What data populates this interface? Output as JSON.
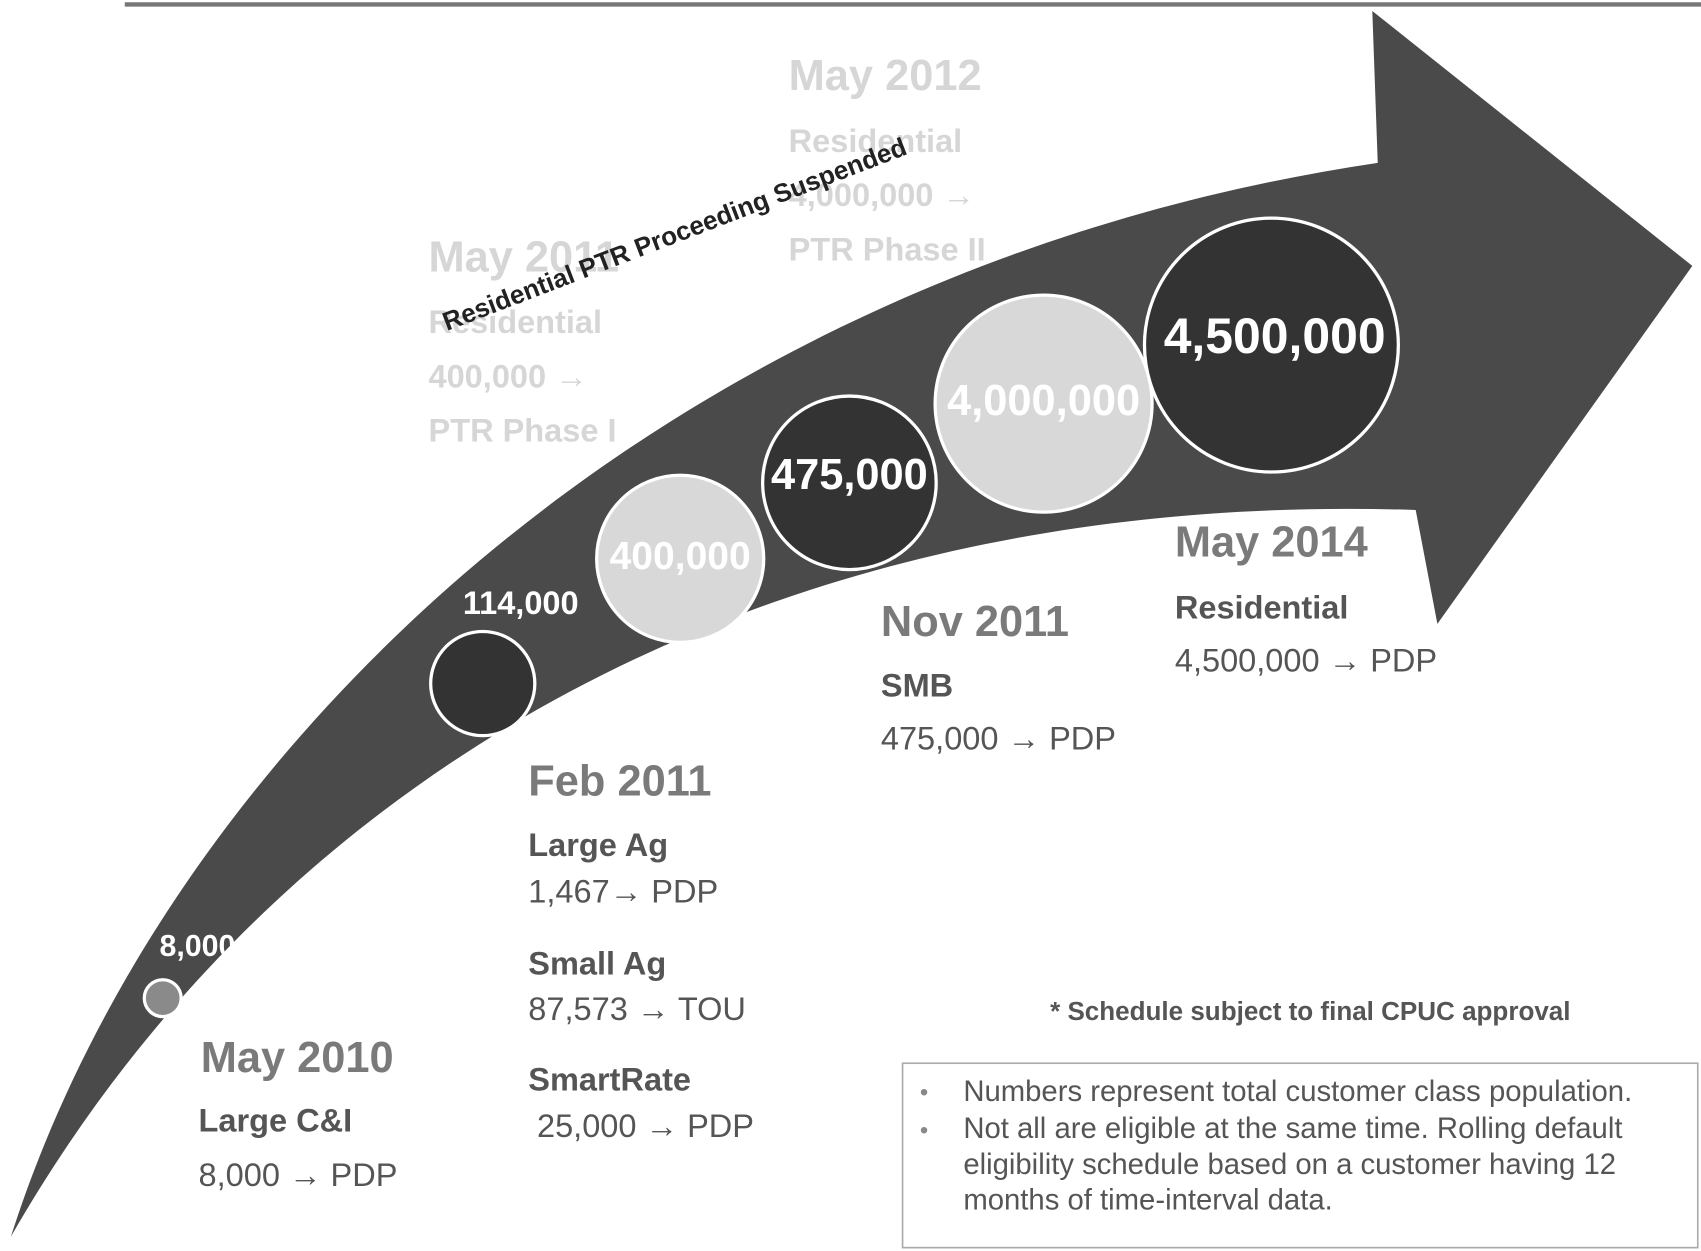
{
  "bubbles": [
    "8,000",
    "114,000",
    "400,000",
    "475,000",
    "4,000,000",
    "4,500,000"
  ],
  "milestones": [
    {
      "date": "May 2010",
      "items": [
        {
          "class": "Large C&I",
          "detail": "8,000 → PDP"
        }
      ]
    },
    {
      "date": "Feb 2011",
      "items": [
        {
          "class": "Large Ag",
          "detail": "1,467→ PDP"
        },
        {
          "class": "Small Ag",
          "detail": "87,573 → TOU"
        },
        {
          "class": "SmartRate",
          "detail": "25,000 → PDP"
        }
      ]
    },
    {
      "date": "Nov 2011",
      "items": [
        {
          "class": "SMB",
          "detail": "475,000 → PDP"
        }
      ]
    },
    {
      "date": "May 2014",
      "items": [
        {
          "class": "Residential",
          "detail": "4,500,000 → PDP"
        }
      ]
    }
  ],
  "suspended_milestones": [
    {
      "date": "May 2011",
      "lines": [
        "Residential",
        "400,000 →",
        "PTR Phase I"
      ]
    },
    {
      "date": "May 2012",
      "lines": [
        "Residential",
        "4,000,000 →",
        "PTR Phase II"
      ]
    }
  ],
  "suspended_label": "Residential PTR Proceeding Suspended",
  "footnote": "* Schedule subject to final CPUC approval",
  "notes": [
    [
      "Numbers represent total customer class population."
    ],
    [
      "Not all are eligible at the same time. Rolling default",
      "eligibility schedule based on a customer having 12",
      "months of time-interval data."
    ]
  ]
}
